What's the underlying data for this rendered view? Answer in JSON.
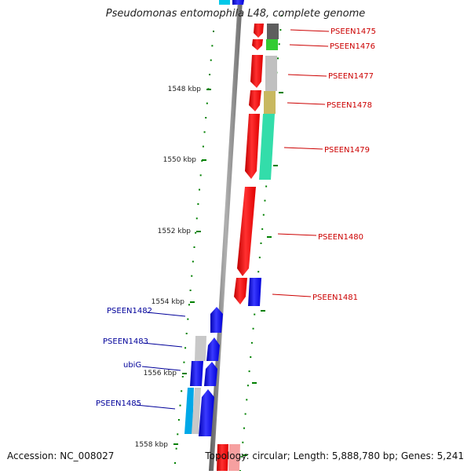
{
  "title": "Pseudomonas entomophila L48, complete genome",
  "footer": {
    "accession": "Accession: NC_008027",
    "topology": "Topology: circular; Length: 5,888,780 bp; Genes: 5,241"
  },
  "colors": {
    "backbone": "#7a7a7a",
    "forward_gene": "#ff0000",
    "reverse_gene": "#0000ff",
    "forward_label": "#cc0000",
    "reverse_label": "#00009a",
    "ticks": "#008000"
  },
  "scale_labels": [
    "1548 kbp",
    "1550 kbp",
    "1552 kbp",
    "1554 kbp",
    "1556 kbp",
    "1558 kbp"
  ],
  "genes_forward": [
    {
      "label": "PSEEN1475"
    },
    {
      "label": "PSEEN1476"
    },
    {
      "label": "PSEEN1477"
    },
    {
      "label": "PSEEN1478"
    },
    {
      "label": "PSEEN1479"
    },
    {
      "label": "PSEEN1480"
    },
    {
      "label": "PSEEN1481"
    }
  ],
  "genes_reverse": [
    {
      "label": "PSEEN1482"
    },
    {
      "label": "PSEEN1483"
    },
    {
      "label": "ubiG"
    },
    {
      "label": "PSEEN1485"
    }
  ]
}
